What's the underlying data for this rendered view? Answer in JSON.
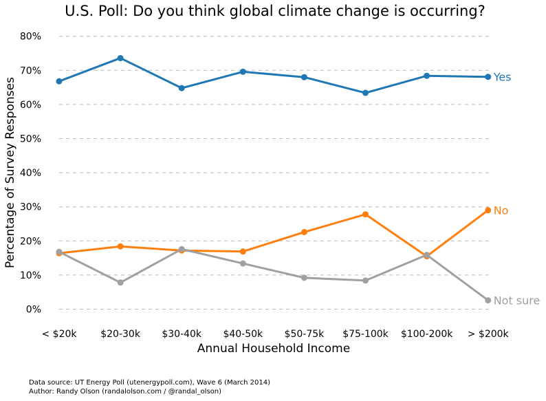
{
  "chart_data": {
    "type": "line",
    "title": "U.S. Poll: Do you think global climate change is occurring?",
    "xlabel": "Annual Household Income",
    "ylabel": "Percentage of Survey Responses",
    "categories": [
      "< $20k",
      "$20-30k",
      "$30-40k",
      "$40-50k",
      "$50-75k",
      "$75-100k",
      "$100-200k",
      "> $200k"
    ],
    "ylim": [
      0,
      80
    ],
    "yticks": [
      "0%",
      "10%",
      "20%",
      "30%",
      "40%",
      "50%",
      "60%",
      "70%",
      "80%"
    ],
    "grid": "horizontal dashed",
    "series": [
      {
        "name": "Yes",
        "color": "#1f77b4",
        "values": [
          66.8,
          73.6,
          64.8,
          69.6,
          68.0,
          63.4,
          68.4,
          68.1
        ]
      },
      {
        "name": "No",
        "color": "#ff7f0e",
        "values": [
          16.4,
          18.4,
          17.2,
          16.9,
          22.6,
          27.8,
          15.5,
          29.0
        ]
      },
      {
        "name": "Not sure",
        "color": "#a0a0a0",
        "values": [
          16.8,
          7.8,
          17.6,
          13.4,
          9.2,
          8.4,
          15.9,
          2.6
        ]
      }
    ]
  },
  "footer": {
    "source": "Data source: UT Energy Poll (utenergypoll.com), Wave 6 (March 2014)",
    "author": "Author: Randy Olson (randalolson.com / @randal_olson)"
  }
}
